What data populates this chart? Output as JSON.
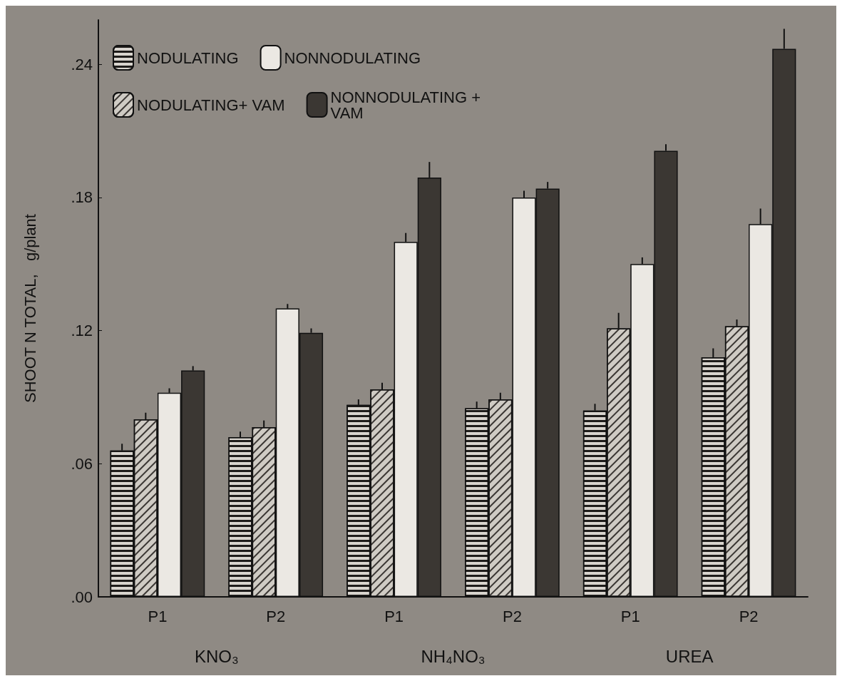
{
  "chart_data": {
    "type": "bar",
    "ylabel": "SHOOT N TOTAL,   g/plant",
    "categories": [
      "P1",
      "P2",
      "P1",
      "P2",
      "P1",
      "P2"
    ],
    "annotations": [
      "KNO₃",
      "NH₄NO₃",
      "UREA"
    ],
    "series": [
      {
        "name": "NODULATING",
        "color": "#d8d4ce",
        "values": [
          0.066,
          0.072,
          0.0865,
          0.085,
          0.084,
          0.108
        ],
        "errors": [
          [
            0.066,
            0.069
          ],
          [
            0.072,
            0.0745
          ],
          [
            0.0865,
            0.089
          ],
          [
            0.085,
            0.088
          ],
          [
            0.084,
            0.087
          ],
          [
            0.108,
            0.112
          ]
        ]
      },
      {
        "name": "NODULATING+ VAM",
        "color": "#cfcbc4",
        "values": [
          0.08,
          0.0765,
          0.0935,
          0.089,
          0.121,
          0.122
        ],
        "errors": [
          [
            0.08,
            0.083
          ],
          [
            0.0765,
            0.0795
          ],
          [
            0.0935,
            0.0965
          ],
          [
            0.089,
            0.092
          ],
          [
            0.121,
            0.128
          ],
          [
            0.122,
            0.125
          ]
        ]
      },
      {
        "name": "NONNODULATING",
        "color": "#ebe8e3",
        "values": [
          0.092,
          0.13,
          0.16,
          0.18,
          0.15,
          0.168
        ],
        "errors": [
          [
            0.092,
            0.094
          ],
          [
            0.13,
            0.132
          ],
          [
            0.16,
            0.164
          ],
          [
            0.18,
            0.183
          ],
          [
            0.15,
            0.153
          ],
          [
            0.168,
            0.175
          ]
        ]
      },
      {
        "name": "NONNODULATING + VAM",
        "color": "#3b3733",
        "values": [
          0.102,
          0.119,
          0.189,
          0.184,
          0.201,
          0.247
        ],
        "errors": [
          [
            0.102,
            0.104
          ],
          [
            0.119,
            0.121
          ],
          [
            0.189,
            0.196
          ],
          [
            0.184,
            0.187
          ],
          [
            0.201,
            0.204
          ],
          [
            0.247,
            0.256
          ]
        ]
      }
    ],
    "ylim": [
      0,
      0.26
    ],
    "yticks": [
      {
        "value": 0,
        "label": ".00"
      },
      {
        "value": 0.06,
        "label": ".06"
      },
      {
        "value": 0.12,
        "label": ".12"
      },
      {
        "value": 0.18,
        "label": ".18"
      },
      {
        "value": 0.24,
        "label": ".24"
      }
    ],
    "grid": false,
    "legend": "top left"
  }
}
